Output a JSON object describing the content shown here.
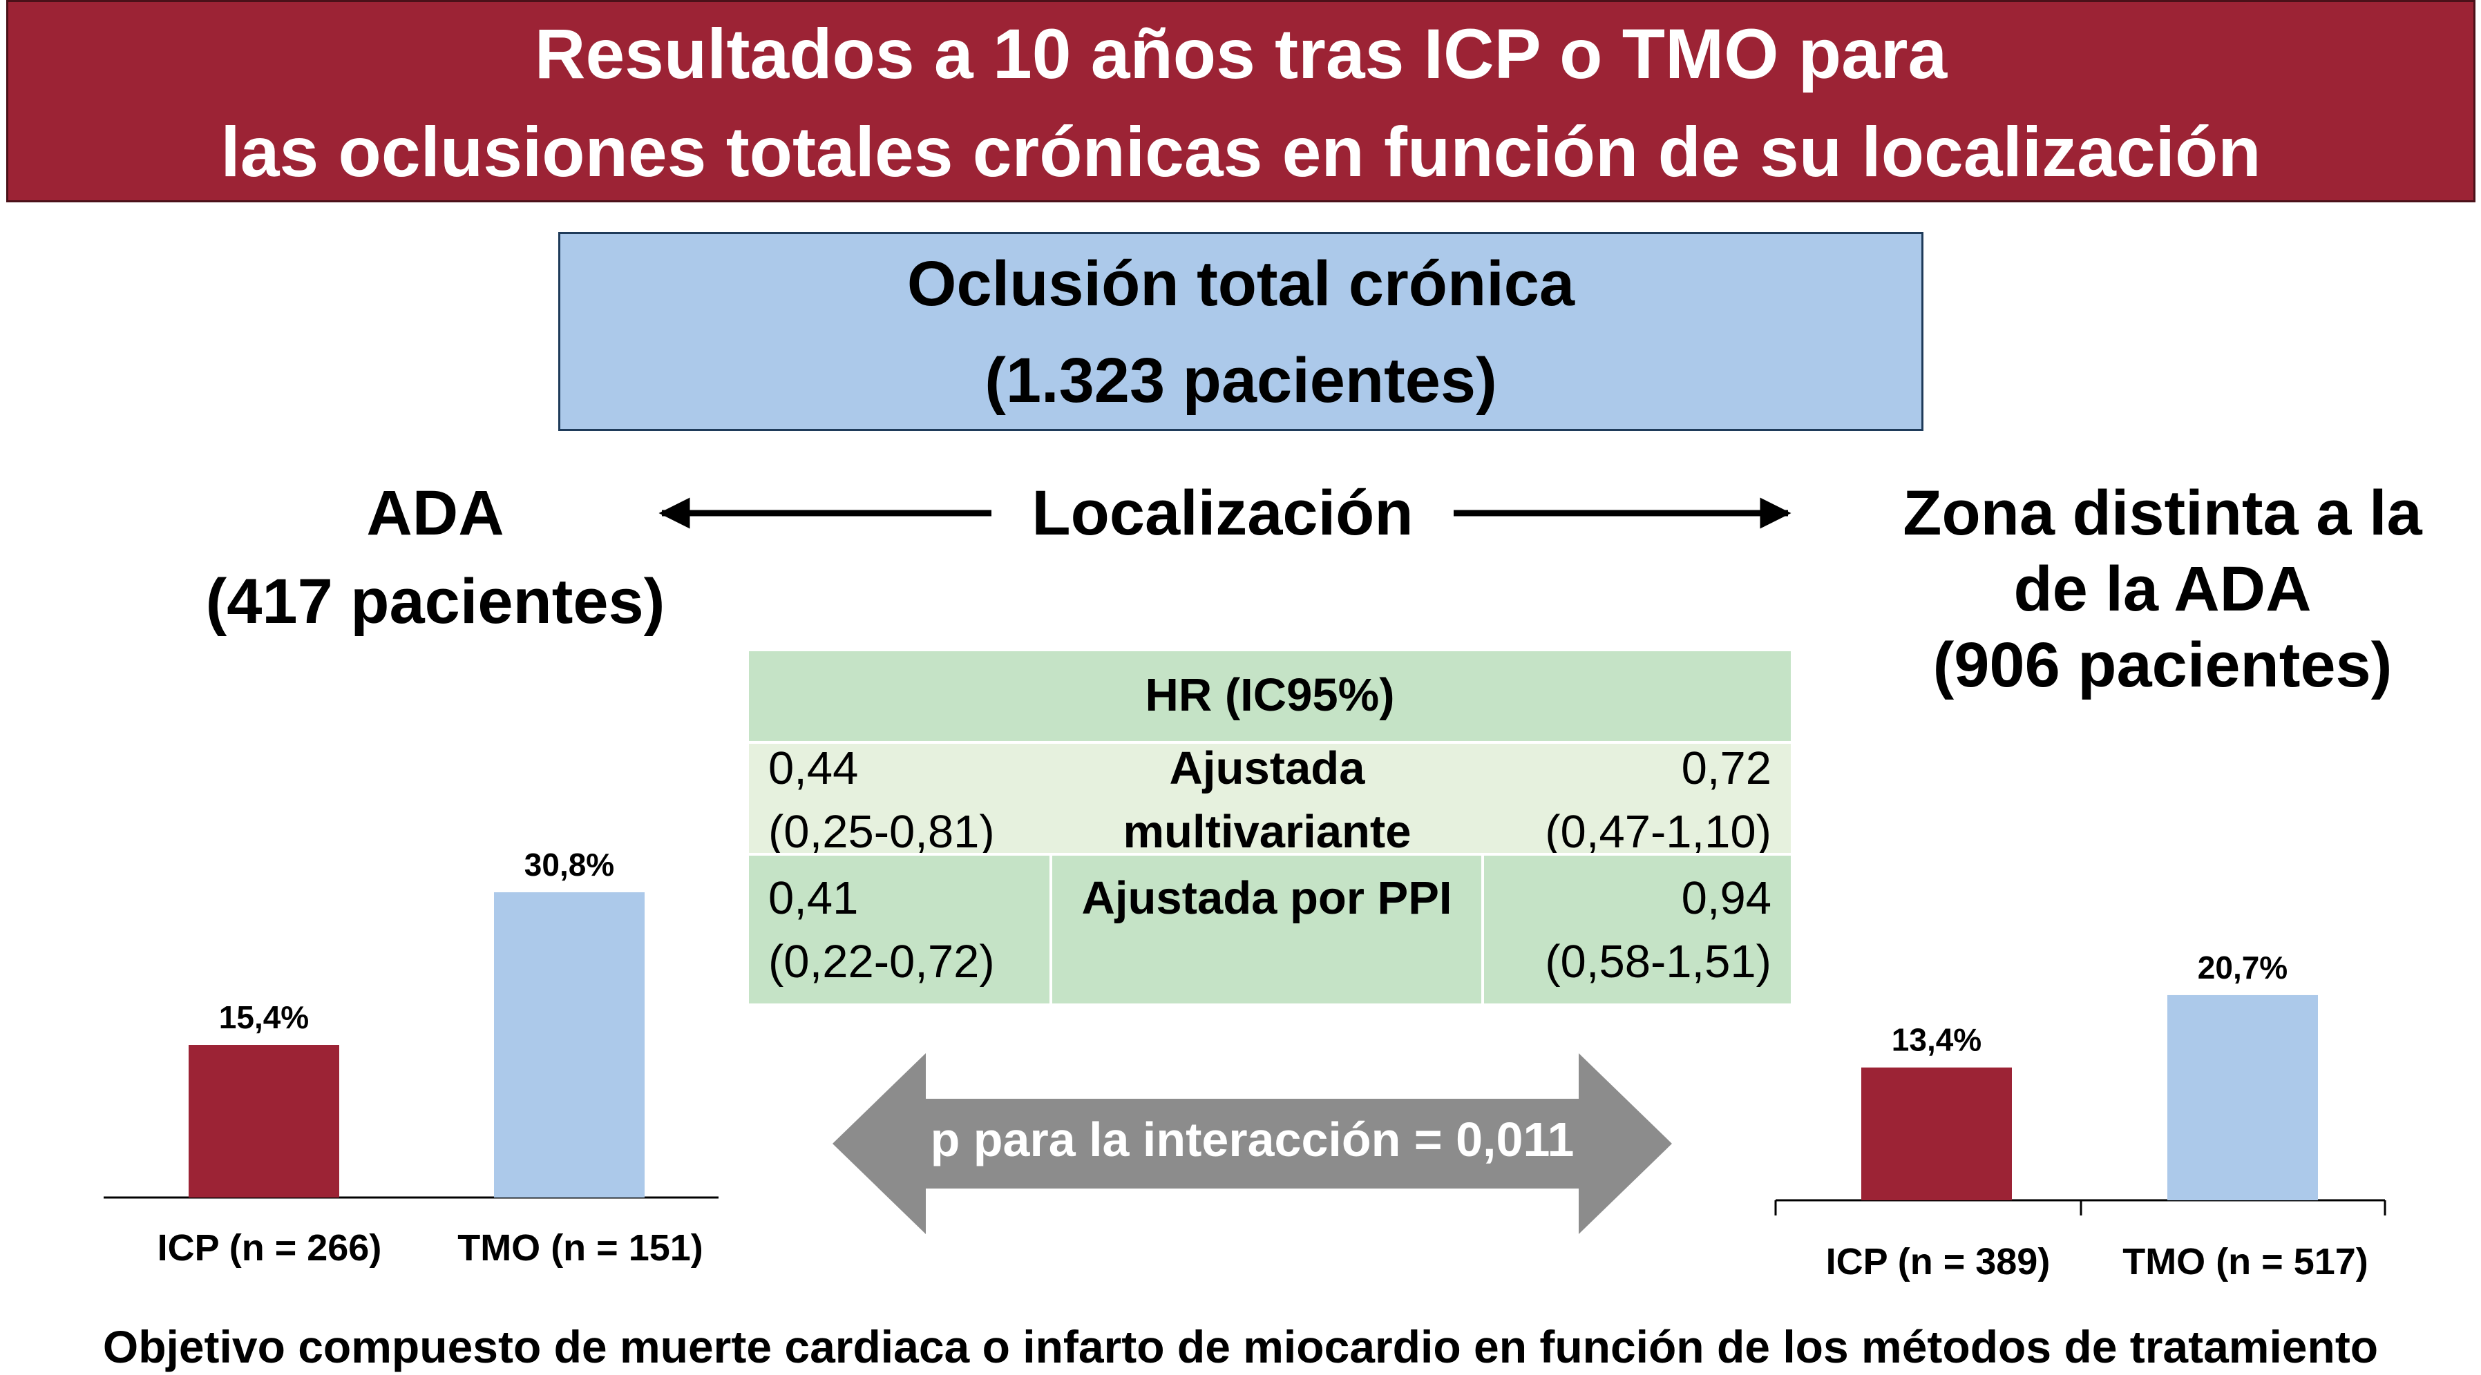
{
  "title": {
    "line1": "Resultados a 10 años tras ICP o TMO para",
    "line2": "las oclusiones totales crónicas en función de su localización"
  },
  "cto_box": {
    "line1": "Oclusión total crónica",
    "line2": "(1.323 pacientes)"
  },
  "location_label": "Localización",
  "left_group": {
    "line1": "ADA",
    "line2": "(417 pacientes)"
  },
  "right_group": {
    "line1": "Zona distinta a la",
    "line2": "de la ADA",
    "line3": "(906 pacientes)"
  },
  "hr_table": {
    "header": "HR (IC95%)",
    "rows": [
      {
        "label_line1": "Ajustada",
        "label_line2": "multivariante",
        "left_value": "0,44",
        "left_ci": "(0,25-0,81)",
        "right_value": "0,72",
        "right_ci": "(0,47-1,10)"
      },
      {
        "label_line1": "Ajustada por PPI",
        "left_value": "0,41",
        "left_ci": "(0,22-0,72)",
        "right_value": "0,94",
        "right_ci": "(0,58-1,51)"
      }
    ]
  },
  "interaction": "p para la interacción = 0,011",
  "footer": "Objetivo compuesto de muerte cardiaca o infarto de miocardio en función de los métodos de tratamiento",
  "colors": {
    "icp": "#9c2335",
    "tmo": "#acc9ea",
    "banner": "#9c2335",
    "table_header": "#c5e3c6",
    "table_light": "#e6f1de",
    "arrow_gray": "#8c8c8c"
  },
  "chart_data": [
    {
      "type": "bar",
      "categories": [
        "ICP (n = 266)",
        "TMO (n = 151)"
      ],
      "values": [
        15.4,
        30.8
      ],
      "value_labels": [
        "15,4%",
        "30,8%"
      ],
      "colors": [
        "#9c2335",
        "#acc9ea"
      ]
    },
    {
      "type": "bar",
      "categories": [
        "ICP (n = 389)",
        "TMO (n = 517)"
      ],
      "values": [
        13.4,
        20.7
      ],
      "value_labels": [
        "13,4%",
        "20,7%"
      ],
      "colors": [
        "#9c2335",
        "#acc9ea"
      ]
    }
  ]
}
